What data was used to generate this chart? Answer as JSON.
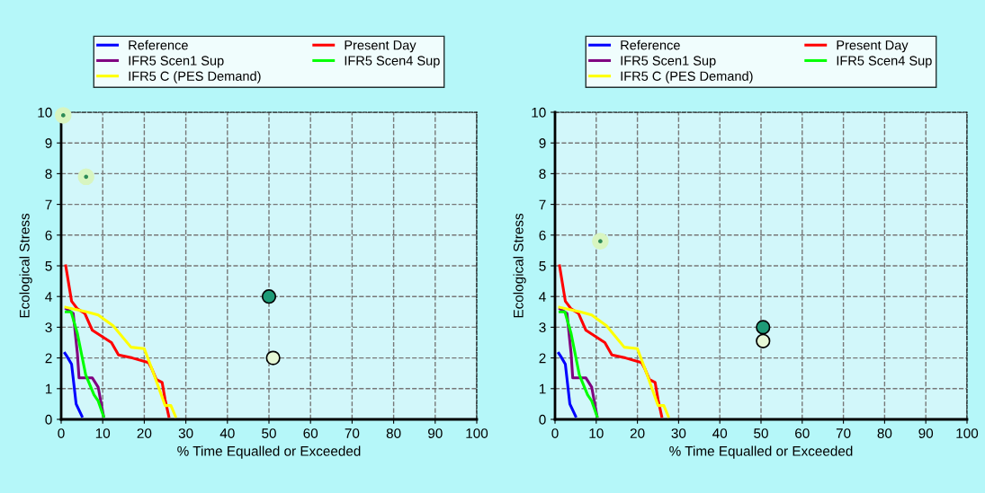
{
  "chart_data": [
    {
      "type": "line",
      "xlabel": "% Time Equalled or Exceeded",
      "ylabel": "Ecological Stress",
      "xlim": [
        0,
        100
      ],
      "ylim": [
        0,
        10
      ],
      "xticks": [
        0,
        10,
        20,
        30,
        40,
        50,
        60,
        70,
        80,
        90,
        100
      ],
      "yticks": [
        0,
        1,
        2,
        3,
        4,
        5,
        6,
        7,
        8,
        9,
        10
      ],
      "grid": true,
      "legend": "top",
      "line_style": "solid",
      "marker": "none",
      "series": [
        {
          "name": "Reference",
          "color": "#0000ff",
          "x": [
            0.9,
            1.4,
            2.5,
            3.6,
            5.0
          ],
          "values": [
            2.15,
            2.05,
            1.8,
            0.5,
            0.1
          ]
        },
        {
          "name": "Present Day",
          "color": "#ff0000",
          "x": [
            1.1,
            2.5,
            3.9,
            5.7,
            7.5,
            12.1,
            13.8,
            17.1,
            21.0,
            21.8,
            22.9,
            24.3,
            25.0,
            25.9
          ],
          "values": [
            5.0,
            3.85,
            3.6,
            3.45,
            2.9,
            2.5,
            2.1,
            2.0,
            1.85,
            1.65,
            1.3,
            1.2,
            0.65,
            0.1
          ]
        },
        {
          "name": "IFR5 Scen1 Sup",
          "color": "#800080",
          "x": [
            1.2,
            2.9,
            3.9,
            4.3,
            7.5,
            8.9,
            10.2
          ],
          "values": [
            3.6,
            3.45,
            2.15,
            1.35,
            1.35,
            1.05,
            0.1
          ]
        },
        {
          "name": "IFR5 Scen4 Sup",
          "color": "#00ff00",
          "x": [
            1.2,
            2.4,
            3.9,
            5.9,
            7.9,
            8.9,
            10.2
          ],
          "values": [
            3.5,
            3.5,
            2.8,
            1.45,
            0.8,
            0.6,
            0.1
          ]
        },
        {
          "name": "IFR5 C (PES Demand)",
          "color": "#ffff00",
          "x": [
            1.1,
            6.1,
            8.9,
            12.5,
            16.8,
            20.0,
            22.1,
            25.0,
            26.4,
            27.5
          ],
          "values": [
            3.65,
            3.5,
            3.4,
            3.05,
            2.35,
            2.3,
            1.55,
            0.45,
            0.45,
            0.1
          ]
        },
        {
          "type": "scatter",
          "marker": "circle",
          "color": "#2e8b57",
          "x": [
            0.5,
            6
          ],
          "values": [
            9.9,
            7.9
          ]
        },
        {
          "type": "scatter",
          "marker": "circle",
          "color": "#1e9b77",
          "x": [
            50
          ],
          "values": [
            4.0
          ]
        },
        {
          "type": "scatter",
          "marker": "circle",
          "color": "#e6f8d6",
          "x": [
            51
          ],
          "values": [
            2.0
          ]
        }
      ]
    },
    {
      "type": "line",
      "xlabel": "% Time Equalled or Exceeded",
      "ylabel": "Ecological Stress",
      "xlim": [
        0,
        100
      ],
      "ylim": [
        0,
        10
      ],
      "xticks": [
        0,
        10,
        20,
        30,
        40,
        50,
        60,
        70,
        80,
        90,
        100
      ],
      "yticks": [
        0,
        1,
        2,
        3,
        4,
        5,
        6,
        7,
        8,
        9,
        10
      ],
      "grid": true,
      "legend": "top",
      "line_style": "solid",
      "marker": "none",
      "series": [
        {
          "name": "Reference",
          "color": "#0000ff",
          "x": [
            0.9,
            1.4,
            2.5,
            3.6,
            5.0
          ],
          "values": [
            2.15,
            2.05,
            1.8,
            0.5,
            0.1
          ]
        },
        {
          "name": "Present Day",
          "color": "#ff0000",
          "x": [
            1.1,
            2.5,
            3.9,
            5.7,
            7.5,
            12.1,
            13.8,
            17.1,
            21.0,
            21.8,
            22.9,
            24.3,
            25.0,
            25.9
          ],
          "values": [
            5.0,
            3.85,
            3.6,
            3.45,
            2.9,
            2.5,
            2.1,
            2.0,
            1.85,
            1.65,
            1.3,
            1.2,
            0.65,
            0.1
          ]
        },
        {
          "name": "IFR5 Scen1 Sup",
          "color": "#800080",
          "x": [
            1.2,
            2.9,
            3.9,
            4.3,
            7.5,
            8.9,
            10.2
          ],
          "values": [
            3.6,
            3.45,
            2.15,
            1.35,
            1.35,
            1.05,
            0.1
          ]
        },
        {
          "name": "IFR5 Scen4 Sup",
          "color": "#00ff00",
          "x": [
            1.2,
            2.4,
            3.9,
            5.9,
            7.9,
            8.9,
            10.2
          ],
          "values": [
            3.5,
            3.5,
            2.8,
            1.45,
            0.8,
            0.6,
            0.1
          ]
        },
        {
          "name": "IFR5 C (PES Demand)",
          "color": "#ffff00",
          "x": [
            1.1,
            6.1,
            8.9,
            12.5,
            16.8,
            20.0,
            22.1,
            25.0,
            26.4,
            27.5
          ],
          "values": [
            3.65,
            3.5,
            3.4,
            3.05,
            2.35,
            2.3,
            1.55,
            0.45,
            0.45,
            0.1
          ]
        },
        {
          "type": "scatter",
          "marker": "circle",
          "color": "#2e8b57",
          "x": [
            11
          ],
          "values": [
            5.8
          ]
        },
        {
          "type": "scatter",
          "marker": "circle",
          "color": "#1e9b77",
          "x": [
            50.5
          ],
          "values": [
            3.0
          ]
        },
        {
          "type": "scatter",
          "marker": "circle",
          "color": "#e6f8d6",
          "x": [
            50.5
          ],
          "values": [
            2.55
          ]
        }
      ]
    }
  ]
}
